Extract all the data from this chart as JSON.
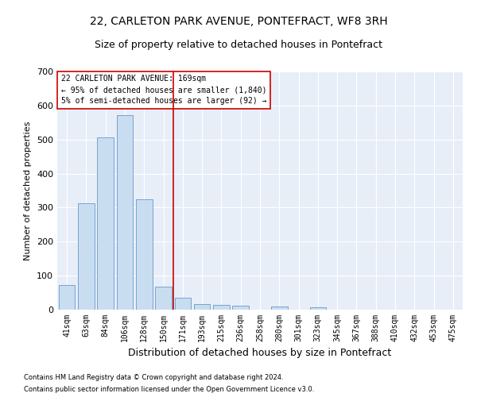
{
  "title": "22, CARLETON PARK AVENUE, PONTEFRACT, WF8 3RH",
  "subtitle": "Size of property relative to detached houses in Pontefract",
  "xlabel": "Distribution of detached houses by size in Pontefract",
  "ylabel": "Number of detached properties",
  "footnote1": "Contains HM Land Registry data © Crown copyright and database right 2024.",
  "footnote2": "Contains public sector information licensed under the Open Government Licence v3.0.",
  "annotation_line1": "22 CARLETON PARK AVENUE: 169sqm",
  "annotation_line2": "← 95% of detached houses are smaller (1,840)",
  "annotation_line3": "5% of semi-detached houses are larger (92) →",
  "bar_categories": [
    "41sqm",
    "63sqm",
    "84sqm",
    "106sqm",
    "128sqm",
    "150sqm",
    "171sqm",
    "193sqm",
    "215sqm",
    "236sqm",
    "258sqm",
    "280sqm",
    "301sqm",
    "323sqm",
    "345sqm",
    "367sqm",
    "388sqm",
    "410sqm",
    "432sqm",
    "453sqm",
    "475sqm"
  ],
  "bar_values": [
    72,
    312,
    507,
    571,
    325,
    67,
    36,
    16,
    13,
    12,
    0,
    10,
    0,
    6,
    0,
    0,
    0,
    0,
    0,
    0,
    0
  ],
  "bar_color": "#c9ddf0",
  "bar_edge_color": "#6699cc",
  "vline_x": 5.5,
  "vline_color": "#cc0000",
  "box_color": "#cc0000",
  "ylim": [
    0,
    700
  ],
  "yticks": [
    0,
    100,
    200,
    300,
    400,
    500,
    600,
    700
  ],
  "background_color": "#e8eef8",
  "grid_color": "#ffffff",
  "fig_background": "#ffffff",
  "title_fontsize": 10,
  "subtitle_fontsize": 9,
  "xlabel_fontsize": 9,
  "ylabel_fontsize": 8,
  "tick_fontsize": 7,
  "footnote_fontsize": 6,
  "annotation_fontsize": 7
}
